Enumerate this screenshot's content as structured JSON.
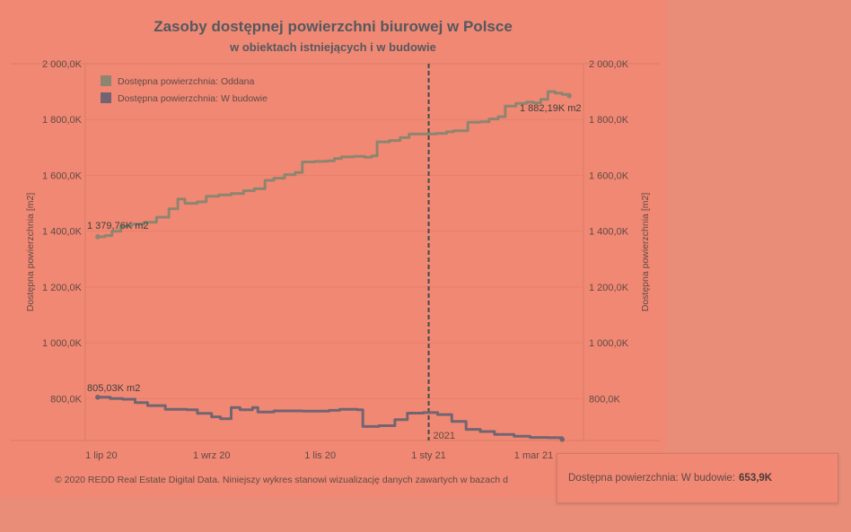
{
  "title": "Zasoby dostępnej powierzchni biurowej w Polsce",
  "subtitle": "w obiektach istniejących i w budowie",
  "footer": "© 2020 REDD Real Estate Digital Data. Niniejszy wykres stanowi wizualizację danych zawartych w bazach d",
  "tooltip": {
    "label": "Dostępna powierzchnia: W budowie:",
    "value": "653,9K"
  },
  "colors": {
    "background": "#f18873",
    "oddana": "#8e8570",
    "w_budowie": "#726571",
    "text": "#5f4a47",
    "title": "#55595f"
  },
  "chart_data": {
    "type": "line",
    "ylabel_left": "Dostępna powierzchnia [m2]",
    "ylabel_right": "Dostępna powierzchnia [m2]",
    "ylim": [
      650,
      2000
    ],
    "y_ticks": [
      {
        "value": 800,
        "label": "800,0K"
      },
      {
        "value": 1000,
        "label": "1 000,0K"
      },
      {
        "value": 1200,
        "label": "1 200,0K"
      },
      {
        "value": 1400,
        "label": "1 400,0K"
      },
      {
        "value": 1600,
        "label": "1 600,0K"
      },
      {
        "value": 1800,
        "label": "1 800,0K"
      },
      {
        "value": 2000,
        "label": "2 000,0K"
      }
    ],
    "xlim": [
      "2020-06-22",
      "2021-03-29"
    ],
    "x_ticks": [
      {
        "date": "2020-07-01",
        "label": "1 lip 20"
      },
      {
        "date": "2020-09-01",
        "label": "1 wrz 20"
      },
      {
        "date": "2020-11-01",
        "label": "1 lis 20"
      },
      {
        "date": "2021-01-01",
        "label": "1 sty 21"
      },
      {
        "date": "2021-03-01",
        "label": "1 mar 21"
      }
    ],
    "reference_line": {
      "date": "2021-01-01",
      "label": "2021"
    },
    "grid": true,
    "legend_position": "top-left",
    "series": [
      {
        "name": "Dostępna powierzchnia: Oddana",
        "color": "#8e8570",
        "start_label": "1 379,76K m2",
        "end_label": "1 882,19K m2",
        "points": [
          [
            "2020-06-29",
            1380
          ],
          [
            "2020-07-03",
            1384
          ],
          [
            "2020-07-07",
            1400
          ],
          [
            "2020-07-12",
            1418
          ],
          [
            "2020-07-18",
            1425
          ],
          [
            "2020-07-25",
            1432
          ],
          [
            "2020-08-01",
            1450
          ],
          [
            "2020-08-08",
            1480
          ],
          [
            "2020-08-13",
            1515
          ],
          [
            "2020-08-17",
            1500
          ],
          [
            "2020-08-24",
            1505
          ],
          [
            "2020-08-29",
            1525
          ],
          [
            "2020-09-05",
            1530
          ],
          [
            "2020-09-12",
            1535
          ],
          [
            "2020-09-19",
            1545
          ],
          [
            "2020-09-25",
            1552
          ],
          [
            "2020-10-01",
            1582
          ],
          [
            "2020-10-06",
            1590
          ],
          [
            "2020-10-12",
            1602
          ],
          [
            "2020-10-18",
            1610
          ],
          [
            "2020-10-22",
            1648
          ],
          [
            "2020-10-29",
            1650
          ],
          [
            "2020-11-05",
            1652
          ],
          [
            "2020-11-09",
            1660
          ],
          [
            "2020-11-13",
            1666
          ],
          [
            "2020-11-20",
            1668
          ],
          [
            "2020-11-26",
            1665
          ],
          [
            "2020-11-30",
            1670
          ],
          [
            "2020-12-03",
            1720
          ],
          [
            "2020-12-10",
            1725
          ],
          [
            "2020-12-16",
            1735
          ],
          [
            "2020-12-21",
            1748
          ],
          [
            "2020-12-28",
            1748
          ],
          [
            "2021-01-05",
            1750
          ],
          [
            "2021-01-11",
            1756
          ],
          [
            "2021-01-15",
            1760
          ],
          [
            "2021-01-19",
            1760
          ],
          [
            "2021-01-23",
            1790
          ],
          [
            "2021-01-30",
            1792
          ],
          [
            "2021-02-04",
            1802
          ],
          [
            "2021-02-09",
            1810
          ],
          [
            "2021-02-13",
            1848
          ],
          [
            "2021-02-19",
            1858
          ],
          [
            "2021-02-25",
            1862
          ],
          [
            "2021-03-01",
            1860
          ],
          [
            "2021-03-05",
            1872
          ],
          [
            "2021-03-09",
            1900
          ],
          [
            "2021-03-13",
            1895
          ],
          [
            "2021-03-17",
            1890
          ],
          [
            "2021-03-21",
            1885
          ]
        ]
      },
      {
        "name": "Dostępna powierzchnia: W budowie",
        "color": "#726571",
        "start_label": "805,03K m2",
        "points": [
          [
            "2020-06-29",
            805
          ],
          [
            "2020-07-06",
            800
          ],
          [
            "2020-07-13",
            798
          ],
          [
            "2020-07-20",
            786
          ],
          [
            "2020-07-27",
            775
          ],
          [
            "2020-08-06",
            762
          ],
          [
            "2020-08-18",
            760
          ],
          [
            "2020-08-24",
            747
          ],
          [
            "2020-09-01",
            735
          ],
          [
            "2020-09-06",
            728
          ],
          [
            "2020-09-12",
            768
          ],
          [
            "2020-09-17",
            760
          ],
          [
            "2020-09-24",
            768
          ],
          [
            "2020-09-27",
            752
          ],
          [
            "2020-10-06",
            756
          ],
          [
            "2020-10-22",
            755
          ],
          [
            "2020-11-06",
            758
          ],
          [
            "2020-11-12",
            762
          ],
          [
            "2020-11-22",
            760
          ],
          [
            "2020-11-25",
            700
          ],
          [
            "2020-12-04",
            703
          ],
          [
            "2020-12-13",
            725
          ],
          [
            "2020-12-20",
            748
          ],
          [
            "2020-12-29",
            750
          ],
          [
            "2021-01-06",
            743
          ],
          [
            "2021-01-14",
            718
          ],
          [
            "2021-01-22",
            690
          ],
          [
            "2021-01-30",
            682
          ],
          [
            "2021-02-07",
            672
          ],
          [
            "2021-02-18",
            665
          ],
          [
            "2021-02-27",
            661
          ],
          [
            "2021-03-09",
            660
          ],
          [
            "2021-03-17",
            654
          ]
        ]
      }
    ]
  }
}
